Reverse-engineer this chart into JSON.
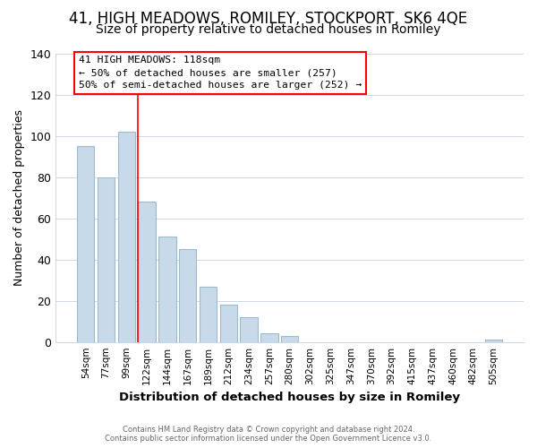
{
  "title": "41, HIGH MEADOWS, ROMILEY, STOCKPORT, SK6 4QE",
  "subtitle": "Size of property relative to detached houses in Romiley",
  "xlabel": "Distribution of detached houses by size in Romiley",
  "ylabel": "Number of detached properties",
  "bar_labels": [
    "54sqm",
    "77sqm",
    "99sqm",
    "122sqm",
    "144sqm",
    "167sqm",
    "189sqm",
    "212sqm",
    "234sqm",
    "257sqm",
    "280sqm",
    "302sqm",
    "325sqm",
    "347sqm",
    "370sqm",
    "392sqm",
    "415sqm",
    "437sqm",
    "460sqm",
    "482sqm",
    "505sqm"
  ],
  "bar_heights": [
    95,
    80,
    102,
    68,
    51,
    45,
    27,
    18,
    12,
    4,
    3,
    0,
    0,
    0,
    0,
    0,
    0,
    0,
    0,
    0,
    1
  ],
  "bar_color": "#c8daea",
  "bar_edge_color": "#a0b8cc",
  "grid_color": "#ccd8e8",
  "background_color": "#ffffff",
  "red_line_index": 3,
  "annotation_line1": "41 HIGH MEADOWS: 118sqm",
  "annotation_line2": "← 50% of detached houses are smaller (257)",
  "annotation_line3": "50% of semi-detached houses are larger (252) →",
  "footer_line1": "Contains HM Land Registry data © Crown copyright and database right 2024.",
  "footer_line2": "Contains public sector information licensed under the Open Government Licence v3.0.",
  "ylim": [
    0,
    140
  ],
  "title_fontsize": 12,
  "subtitle_fontsize": 10
}
